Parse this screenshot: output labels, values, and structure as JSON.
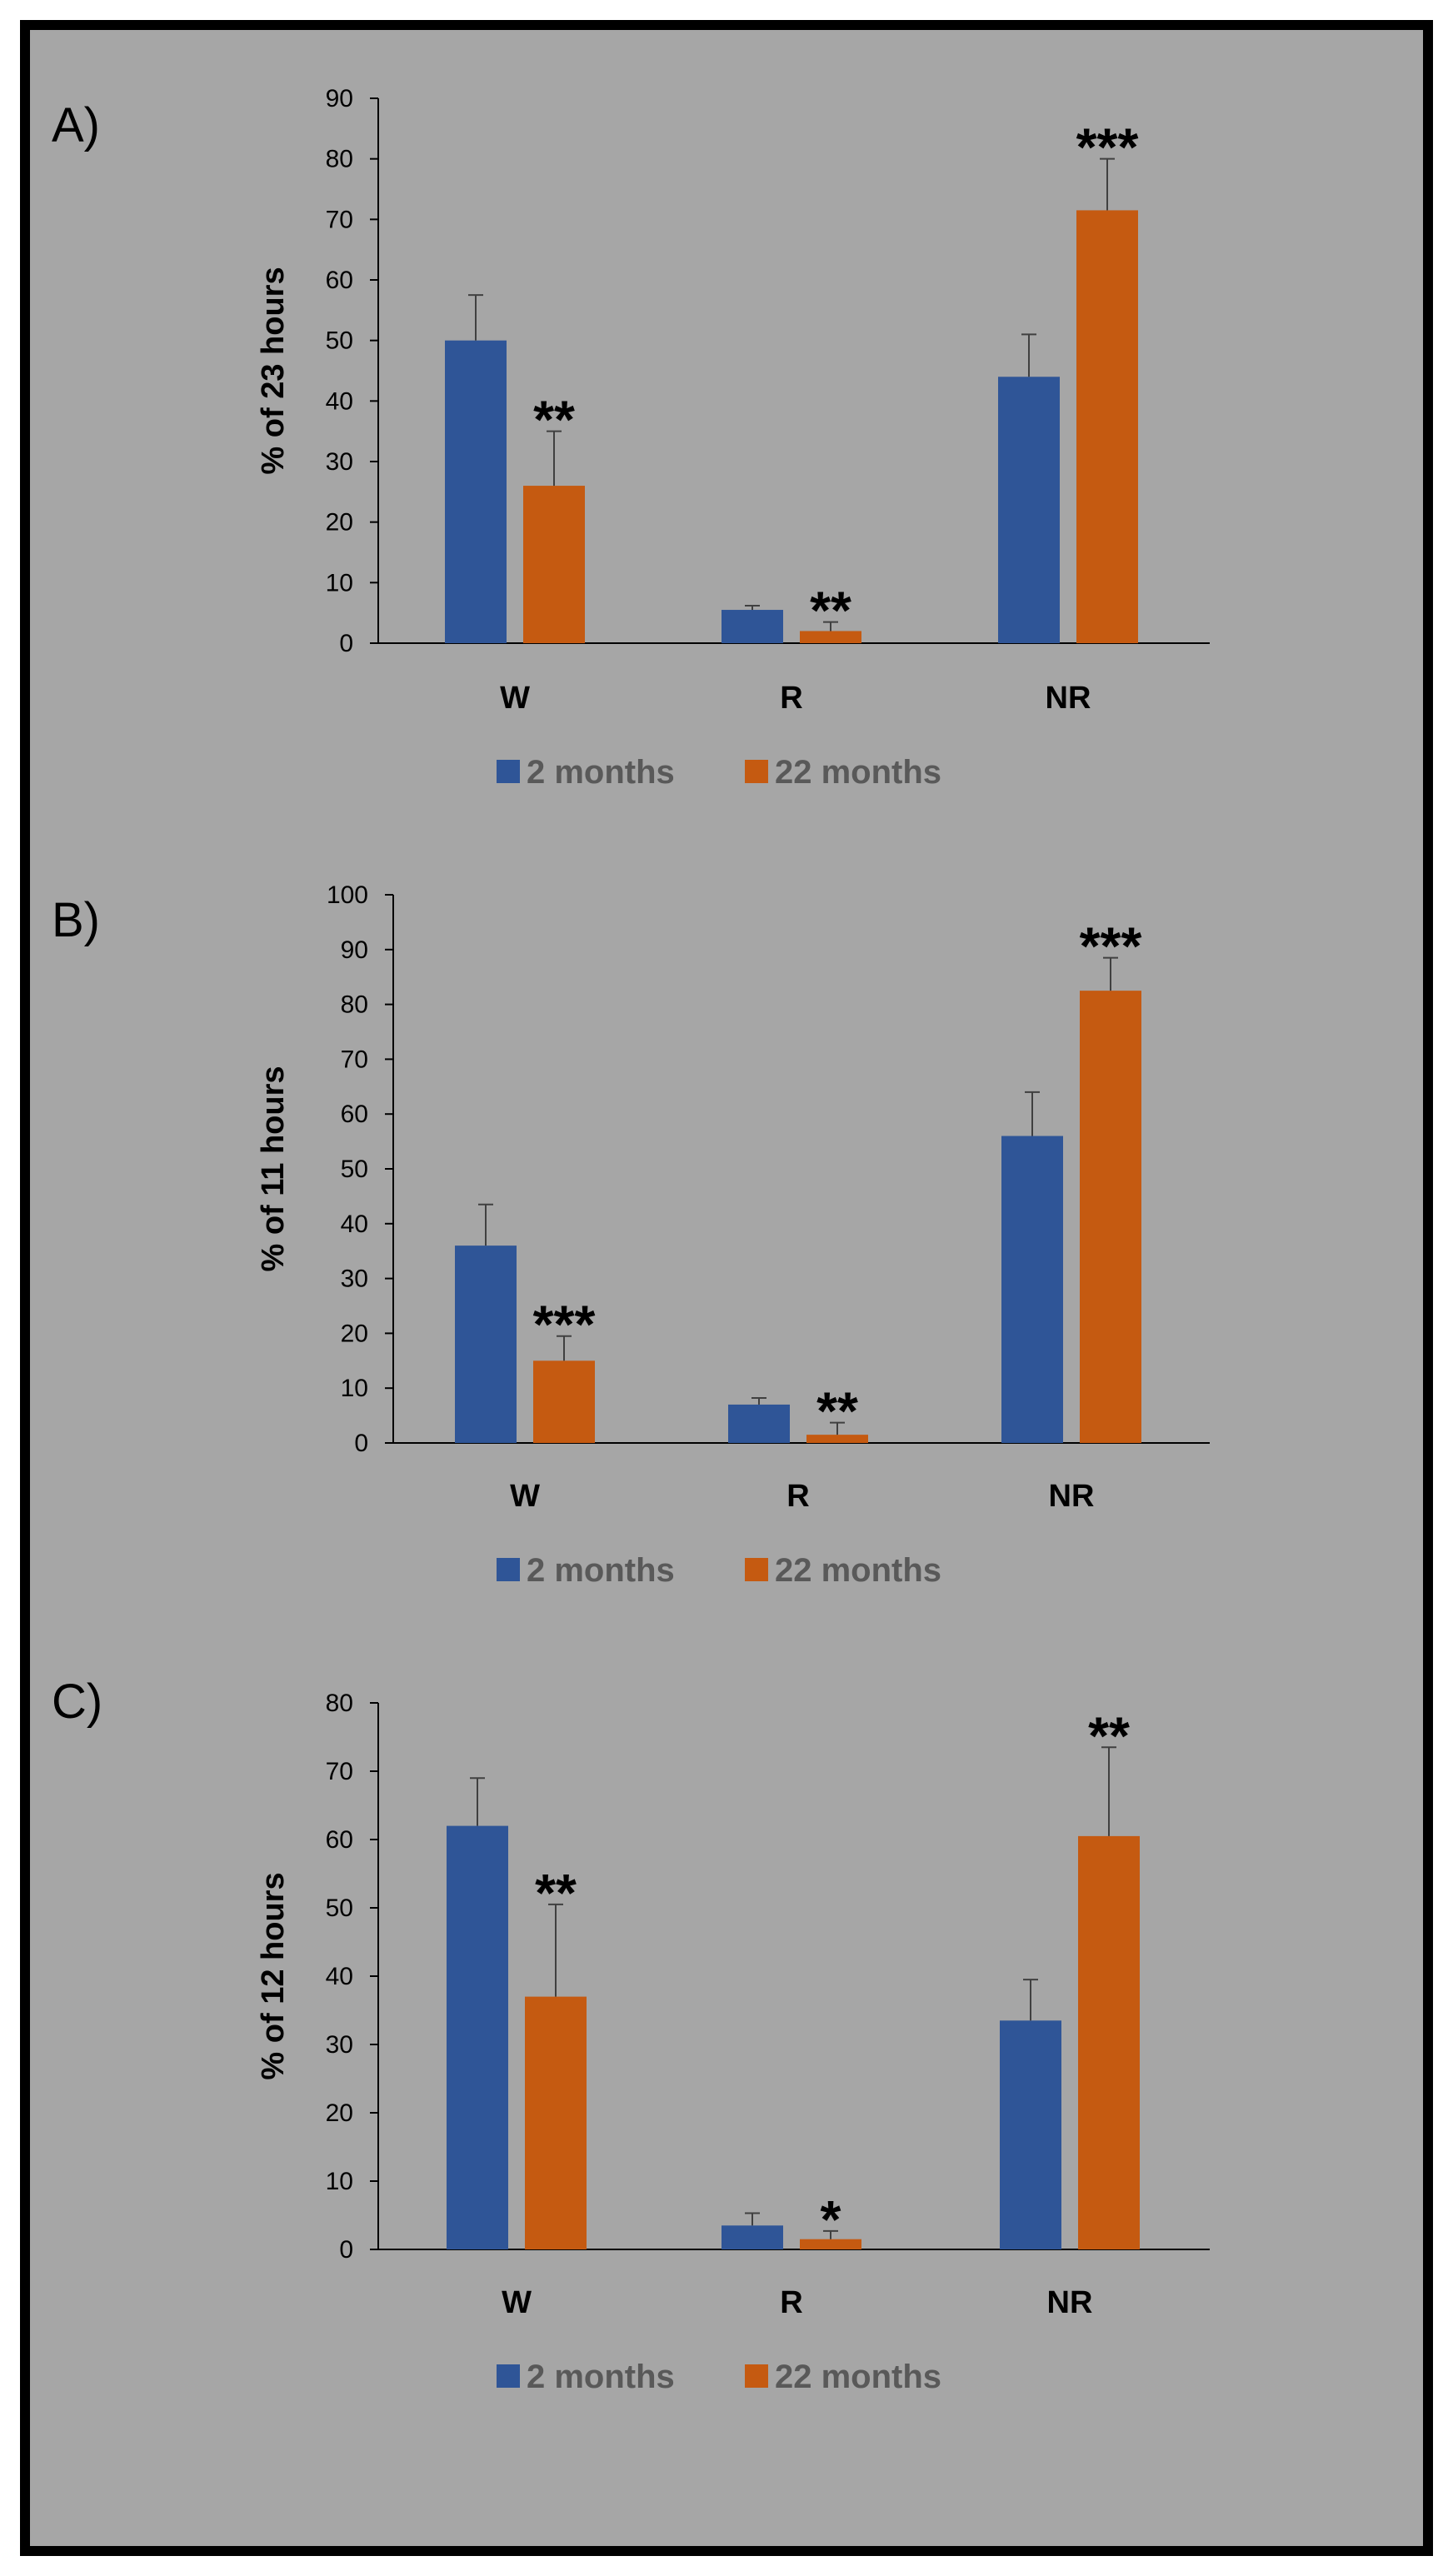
{
  "colors": {
    "background": "#a6a6a6",
    "frame": "#000000",
    "series_2_months": "#2f5597",
    "series_22_months": "#c55a11",
    "legend_text": "#595959",
    "error_bar": "#404040"
  },
  "chart_data": [
    {
      "type": "bar",
      "panel_label": "A)",
      "ylabel": "% of 23 hours",
      "xlabel": "",
      "ylim": [
        0,
        90
      ],
      "yticks": [
        0,
        10,
        20,
        30,
        40,
        50,
        60,
        70,
        80,
        90
      ],
      "categories": [
        "W",
        "R",
        "NR"
      ],
      "series": [
        {
          "name": "2 months",
          "values": [
            50,
            5.5,
            44
          ],
          "errors": [
            7.5,
            0.7,
            7
          ]
        },
        {
          "name": "22 months",
          "values": [
            26,
            2,
            71.5
          ],
          "errors": [
            9,
            1.5,
            8.5
          ]
        }
      ],
      "significance": [
        "**",
        "**",
        "***"
      ],
      "legend": [
        "2 months",
        "22 months"
      ],
      "legend_position": "bottom-center"
    },
    {
      "type": "bar",
      "panel_label": "B)",
      "ylabel": "% of 11 hours",
      "xlabel": "",
      "ylim": [
        0,
        100
      ],
      "yticks": [
        0,
        10,
        20,
        30,
        40,
        50,
        60,
        70,
        80,
        90,
        100
      ],
      "categories": [
        "W",
        "R",
        "NR"
      ],
      "series": [
        {
          "name": "2 months",
          "values": [
            36,
            7,
            56
          ],
          "errors": [
            7.5,
            1.2,
            8
          ]
        },
        {
          "name": "22 months",
          "values": [
            15,
            1.5,
            82.5
          ],
          "errors": [
            4.5,
            2.2,
            6
          ]
        }
      ],
      "significance": [
        "***",
        "**",
        "***"
      ],
      "legend": [
        "2 months",
        "22 months"
      ],
      "legend_position": "bottom-center"
    },
    {
      "type": "bar",
      "panel_label": "C)",
      "ylabel": "% of 12 hours",
      "xlabel": "",
      "ylim": [
        0,
        80
      ],
      "yticks": [
        0,
        10,
        20,
        30,
        40,
        50,
        60,
        70,
        80
      ],
      "categories": [
        "W",
        "R",
        "NR"
      ],
      "series": [
        {
          "name": "2 months",
          "values": [
            62,
            3.5,
            33.5
          ],
          "errors": [
            7,
            1.8,
            6
          ]
        },
        {
          "name": "22 months",
          "values": [
            37,
            1.5,
            60.5
          ],
          "errors": [
            13.5,
            1.2,
            13
          ]
        }
      ],
      "significance": [
        "**",
        "*",
        "**"
      ],
      "legend": [
        "2 months",
        "22 months"
      ],
      "legend_position": "bottom-center"
    }
  ]
}
